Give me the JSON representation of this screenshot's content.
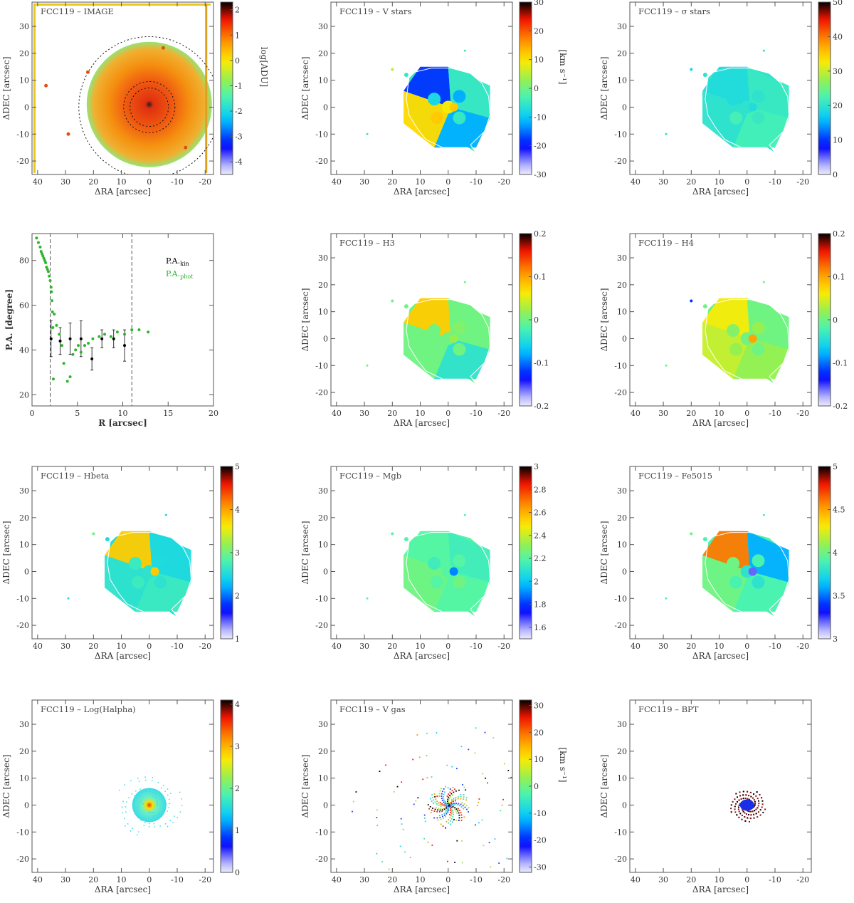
{
  "figure": {
    "xlabel": "ΔRA [arcsec]",
    "ylabel": "ΔDEC [arcsec]",
    "kms_unit": "[km s⁻¹]"
  },
  "chart_data": [
    {
      "id": "image",
      "type": "heatmap",
      "title": "FCC119 – IMAGE",
      "xticks": [
        40,
        30,
        20,
        10,
        0,
        -10,
        -20
      ],
      "yticks": [
        -20,
        -10,
        0,
        10,
        20,
        30
      ],
      "xlim": [
        42,
        -23
      ],
      "ylim": [
        -25,
        39
      ],
      "colorbar": {
        "ticks": [
          -4,
          -3,
          -2,
          -1,
          0,
          1,
          2
        ],
        "range": [
          -4.5,
          2.3
        ],
        "label": "log[ADU]"
      }
    },
    {
      "id": "vstars",
      "type": "heatmap",
      "title": "FCC119 – V stars",
      "xticks": [
        40,
        30,
        20,
        10,
        0,
        -10,
        -20
      ],
      "yticks": [
        -20,
        -10,
        0,
        10,
        20,
        30
      ],
      "xlim": [
        42,
        -23
      ],
      "ylim": [
        -25,
        39
      ],
      "colorbar": {
        "ticks": [
          -30,
          -20,
          -10,
          0,
          10,
          20,
          30
        ],
        "range": [
          -30,
          30
        ],
        "label": "[km s⁻¹]"
      }
    },
    {
      "id": "sigma",
      "type": "heatmap",
      "title": "FCC119 – σ stars",
      "xticks": [
        40,
        30,
        20,
        10,
        0,
        -10,
        -20
      ],
      "yticks": [
        -20,
        -10,
        0,
        10,
        20,
        30
      ],
      "xlim": [
        42,
        -23
      ],
      "ylim": [
        -25,
        39
      ],
      "colorbar": {
        "ticks": [
          0,
          10,
          20,
          30,
          40,
          50
        ],
        "range": [
          0,
          50
        ],
        "label": "[km s⁻¹]"
      }
    },
    {
      "id": "pa",
      "type": "scatter",
      "xlabel": "R [arcsec]",
      "ylabel": "P.A. [degree]",
      "xticks": [
        0,
        5,
        10,
        15,
        20
      ],
      "yticks": [
        20,
        40,
        60,
        80
      ],
      "xlim": [
        0,
        20
      ],
      "ylim": [
        15,
        92
      ],
      "vlines": [
        2,
        11
      ],
      "legend": [
        {
          "name": "P.A.",
          "sub": "kin",
          "color": "#000000"
        },
        {
          "name": "P.A.",
          "sub": "phot",
          "color": "#2db52d"
        }
      ],
      "series": [
        {
          "name": "P.A.kin",
          "color": "#000000",
          "points": [
            [
              2.1,
              45,
              8
            ],
            [
              3.1,
              44,
              6
            ],
            [
              4.2,
              45,
              7
            ],
            [
              5.4,
              45,
              8
            ],
            [
              6.6,
              36,
              5
            ],
            [
              7.7,
              45,
              4
            ],
            [
              9,
              45,
              4
            ],
            [
              10.2,
              42,
              7
            ]
          ]
        },
        {
          "name": "P.A.phot",
          "color": "#2db52d",
          "points": [
            [
              0.5,
              90
            ],
            [
              0.7,
              88
            ],
            [
              0.9,
              86
            ],
            [
              1.0,
              84
            ],
            [
              1.1,
              83
            ],
            [
              1.2,
              82
            ],
            [
              1.3,
              81
            ],
            [
              1.4,
              80
            ],
            [
              1.5,
              79
            ],
            [
              1.6,
              77
            ],
            [
              1.7,
              76
            ],
            [
              1.8,
              75
            ],
            [
              1.9,
              73
            ],
            [
              2.0,
              71
            ],
            [
              2.1,
              68
            ],
            [
              2.15,
              66
            ],
            [
              2.2,
              62
            ],
            [
              2.25,
              57
            ],
            [
              2.3,
              50
            ],
            [
              2.35,
              27
            ],
            [
              2.45,
              56
            ],
            [
              2.7,
              51
            ],
            [
              3.0,
              47
            ],
            [
              3.3,
              42
            ],
            [
              3.5,
              34
            ],
            [
              3.9,
              26
            ],
            [
              4.2,
              28
            ],
            [
              4.5,
              38
            ],
            [
              4.8,
              40
            ],
            [
              5.1,
              42
            ],
            [
              5.4,
              39
            ],
            [
              5.8,
              42
            ],
            [
              6.2,
              43
            ],
            [
              6.7,
              45
            ],
            [
              7.4,
              46
            ],
            [
              8.0,
              47
            ],
            [
              8.7,
              46
            ],
            [
              9.4,
              48
            ],
            [
              10.2,
              47
            ],
            [
              11.0,
              49
            ],
            [
              11.8,
              49
            ],
            [
              12.8,
              48
            ]
          ]
        }
      ]
    },
    {
      "id": "h3",
      "type": "heatmap",
      "title": "FCC119 – H3",
      "xticks": [
        40,
        30,
        20,
        10,
        0,
        -10,
        -20
      ],
      "yticks": [
        -20,
        -10,
        0,
        10,
        20,
        30
      ],
      "xlim": [
        42,
        -23
      ],
      "ylim": [
        -25,
        39
      ],
      "colorbar": {
        "ticks": [
          -0.2,
          -0.1,
          0.0,
          0.1,
          0.2
        ],
        "range": [
          -0.2,
          0.2
        ],
        "label": ""
      }
    },
    {
      "id": "h4",
      "type": "heatmap",
      "title": "FCC119 – H4",
      "xticks": [
        40,
        30,
        20,
        10,
        0,
        -10,
        -20
      ],
      "yticks": [
        -20,
        -10,
        0,
        10,
        20,
        30
      ],
      "xlim": [
        42,
        -23
      ],
      "ylim": [
        -25,
        39
      ],
      "colorbar": {
        "ticks": [
          -0.2,
          -0.1,
          0.0,
          0.1,
          0.2
        ],
        "range": [
          -0.2,
          0.2
        ],
        "label": ""
      }
    },
    {
      "id": "hbeta",
      "type": "heatmap",
      "title": "FCC119 – Hbeta",
      "xticks": [
        40,
        30,
        20,
        10,
        0,
        -10,
        -20
      ],
      "yticks": [
        -20,
        -10,
        0,
        10,
        20,
        30
      ],
      "xlim": [
        42,
        -23
      ],
      "ylim": [
        -25,
        39
      ],
      "colorbar": {
        "ticks": [
          1,
          2,
          3,
          4,
          5
        ],
        "range": [
          1,
          5
        ],
        "label": ""
      }
    },
    {
      "id": "mgb",
      "type": "heatmap",
      "title": "FCC119 – Mgb",
      "xticks": [
        40,
        30,
        20,
        10,
        0,
        -10,
        -20
      ],
      "yticks": [
        -20,
        -10,
        0,
        10,
        20,
        30
      ],
      "xlim": [
        42,
        -23
      ],
      "ylim": [
        -25,
        39
      ],
      "colorbar": {
        "ticks": [
          1.6,
          1.8,
          2.0,
          2.2,
          2.4,
          2.6,
          2.8,
          3.0
        ],
        "range": [
          1.5,
          3.0
        ],
        "label": ""
      }
    },
    {
      "id": "fe5015",
      "type": "heatmap",
      "title": "FCC119 – Fe5015",
      "xticks": [
        40,
        30,
        20,
        10,
        0,
        -10,
        -20
      ],
      "yticks": [
        -20,
        -10,
        0,
        10,
        20,
        30
      ],
      "xlim": [
        42,
        -23
      ],
      "ylim": [
        -25,
        39
      ],
      "colorbar": {
        "ticks": [
          3.0,
          3.5,
          4.0,
          4.5,
          5.0
        ],
        "range": [
          3.0,
          5.0
        ],
        "label": ""
      }
    },
    {
      "id": "halpha",
      "type": "heatmap",
      "title": "FCC119 – Log(Halpha)",
      "xticks": [
        40,
        30,
        20,
        10,
        0,
        -10,
        -20
      ],
      "yticks": [
        -20,
        -10,
        0,
        10,
        20,
        30
      ],
      "xlim": [
        42,
        -23
      ],
      "ylim": [
        -25,
        39
      ],
      "colorbar": {
        "ticks": [
          0,
          1,
          2,
          3,
          4
        ],
        "range": [
          0,
          4.1
        ],
        "label": ""
      }
    },
    {
      "id": "vgas",
      "type": "heatmap",
      "title": "FCC119 – V gas",
      "xticks": [
        40,
        30,
        20,
        10,
        0,
        -10,
        -20
      ],
      "yticks": [
        -20,
        -10,
        0,
        10,
        20,
        30
      ],
      "xlim": [
        42,
        -23
      ],
      "ylim": [
        -25,
        39
      ],
      "colorbar": {
        "ticks": [
          -30,
          -20,
          -10,
          0,
          10,
          20,
          30
        ],
        "range": [
          -32,
          32
        ],
        "label": "[km s⁻¹]"
      }
    },
    {
      "id": "bpt",
      "type": "heatmap",
      "title": "FCC119 – BPT",
      "xticks": [
        40,
        30,
        20,
        10,
        0,
        -10,
        -20
      ],
      "yticks": [
        -20,
        -10,
        0,
        10,
        20,
        30
      ],
      "xlim": [
        42,
        -23
      ],
      "ylim": [
        -25,
        39
      ],
      "colorbar": null
    }
  ]
}
